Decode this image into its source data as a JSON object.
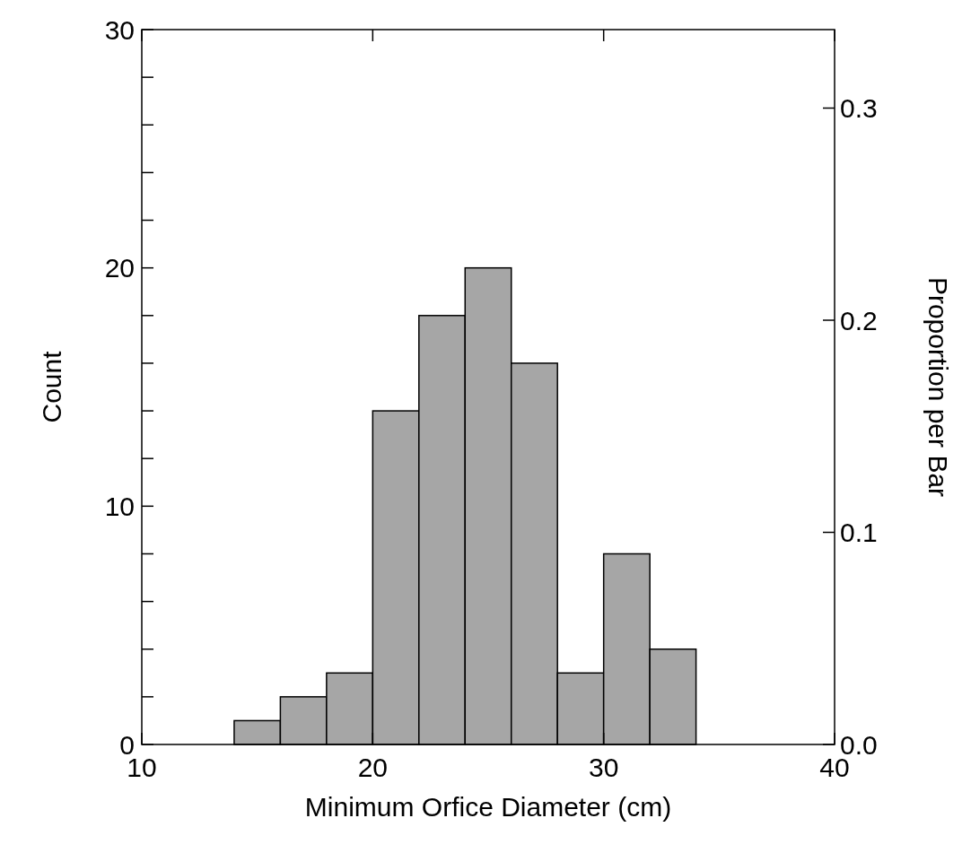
{
  "chart_data": {
    "type": "histogram",
    "xlabel": "Minimum Orfice Diameter (cm)",
    "ylabel": "Count",
    "y2label": "Proportion per Bar",
    "bins": [
      14,
      16,
      18,
      20,
      22,
      24,
      26,
      28,
      30,
      32,
      34
    ],
    "values": [
      1,
      2,
      3,
      14,
      18,
      20,
      16,
      3,
      8,
      4
    ],
    "color": "#a6a6a6",
    "xlim": [
      10,
      40
    ],
    "xticks": [
      10,
      20,
      30,
      40
    ],
    "ylim": [
      0,
      30
    ],
    "yticks": [
      0,
      {
        "value": 2,
        "label": null
      },
      {
        "value": 4,
        "label": null
      },
      {
        "value": 6,
        "label": null
      },
      {
        "value": 8,
        "label": null
      },
      10,
      {
        "value": 12,
        "label": null
      },
      {
        "value": 14,
        "label": null
      },
      {
        "value": 16,
        "label": null
      },
      {
        "value": 18,
        "label": null
      },
      20,
      {
        "value": 22,
        "label": null
      },
      {
        "value": 24,
        "label": null
      },
      {
        "value": 26,
        "label": null
      },
      {
        "value": 28,
        "label": null
      },
      30
    ],
    "y2lim": [
      0,
      0.337
    ],
    "y2ticks": [
      {
        "value": 0,
        "label": "0.0"
      },
      {
        "value": 0.1,
        "label": "0.1"
      },
      {
        "value": 0.2,
        "label": "0.2"
      },
      {
        "value": 0.3,
        "label": "0.3"
      }
    ],
    "grid": false
  }
}
